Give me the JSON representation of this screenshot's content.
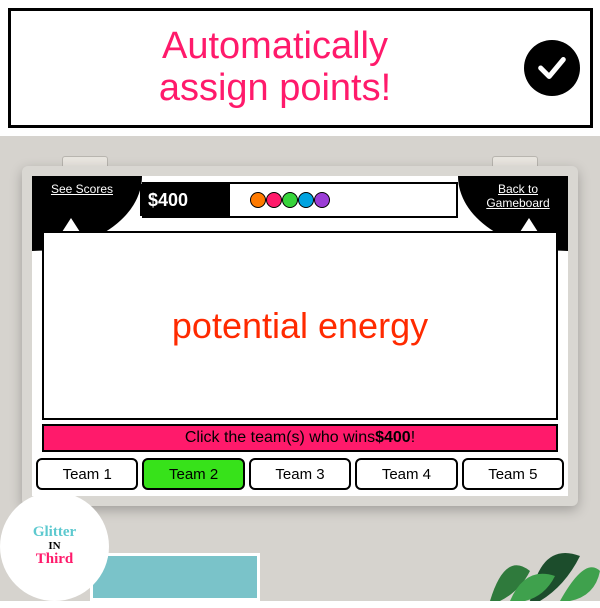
{
  "banner": {
    "line1": "Automatically",
    "line2": "assign points!",
    "text_color": "#ff1a6b",
    "check_bg": "#000000",
    "check_stroke": "#ffffff"
  },
  "scene": {
    "wall_color": "#d6d3ce"
  },
  "board": {
    "corners": {
      "left_label": "See Scores",
      "right_label": "Back to Gameboard"
    },
    "price": "$400",
    "dots": [
      "#ff7a00",
      "#ff1a6b",
      "#37d43b",
      "#00a3e0",
      "#9b3dd6"
    ],
    "answer": "potential energy",
    "answer_color": "#ff2a00",
    "instruction_prefix": "Click the team(s) who wins ",
    "instruction_prize": "$400",
    "instruction_suffix": "!",
    "instruction_bg": "#ff1a6b",
    "teams": [
      {
        "label": "Team 1",
        "bg": "#ffffff"
      },
      {
        "label": "Team 2",
        "bg": "#37e21a"
      },
      {
        "label": "Team 3",
        "bg": "#ffffff"
      },
      {
        "label": "Team 4",
        "bg": "#ffffff"
      },
      {
        "label": "Team 5",
        "bg": "#ffffff"
      }
    ]
  },
  "logo": {
    "line1": "Glitter",
    "line2": "IN",
    "line3": "Third",
    "color1": "#5dc9cf",
    "color2": "#000000",
    "color3": "#ff1a6b"
  },
  "furniture_color": "#7ac3c9",
  "plant_colors": [
    "#1c4d2c",
    "#2f7a3c",
    "#3fa14d"
  ]
}
